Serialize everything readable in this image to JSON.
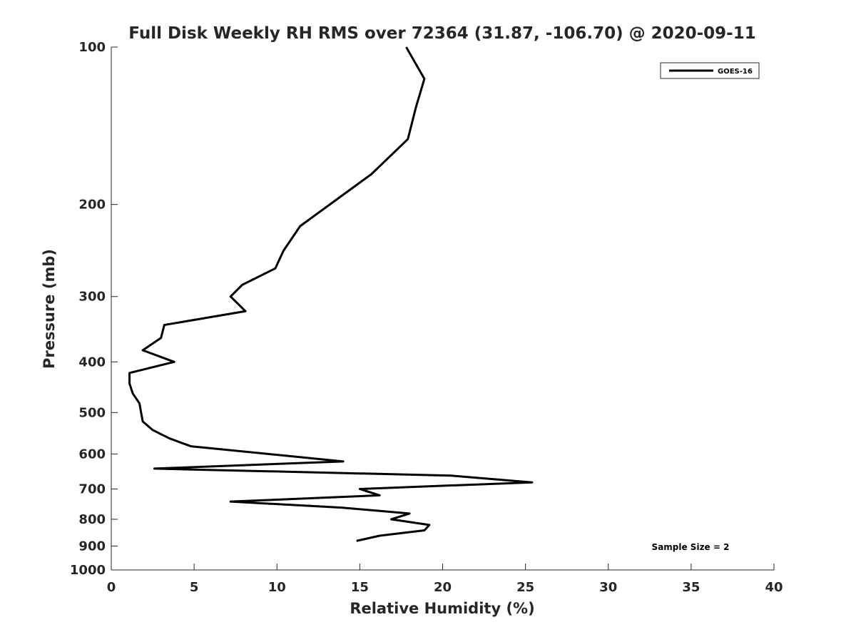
{
  "chart_data": {
    "type": "line",
    "title": "Full Disk Weekly RH RMS over 72364 (31.87, -106.70) @ 2020-09-11",
    "xlabel": "Relative Humidity (%)",
    "ylabel": "Pressure (mb)",
    "xlim": [
      0,
      40
    ],
    "ylim": [
      100,
      1000
    ],
    "yscale": "log",
    "yaxis_reversed": true,
    "xticks": [
      0,
      5,
      10,
      15,
      20,
      25,
      30,
      35,
      40
    ],
    "yticks": [
      100,
      200,
      300,
      400,
      500,
      600,
      700,
      800,
      900,
      1000
    ],
    "grid": false,
    "legend": {
      "placement": "top-right",
      "entries": [
        "GOES-16"
      ]
    },
    "annotation": "Sample Size = 2",
    "line_color": "#000000",
    "series": [
      {
        "name": "GOES-16",
        "x": [
          17.8,
          18.9,
          18.4,
          17.9,
          15.7,
          11.4,
          10.4,
          9.9,
          7.9,
          7.2,
          8.1,
          3.2,
          3.0,
          1.9,
          3.8,
          1.1,
          1.1,
          1.3,
          1.7,
          1.8,
          1.9,
          2.5,
          3.5,
          4.8,
          14.0,
          2.6,
          20.5,
          25.4,
          15.0,
          16.2,
          7.2,
          13.9,
          18.0,
          16.9,
          19.2,
          18.9,
          16.2,
          14.8
        ],
        "y": [
          100,
          115,
          130,
          150,
          175,
          220,
          245,
          265,
          285,
          300,
          320,
          340,
          360,
          380,
          400,
          420,
          440,
          460,
          480,
          500,
          520,
          540,
          560,
          580,
          620,
          640,
          660,
          680,
          700,
          720,
          740,
          760,
          780,
          800,
          820,
          840,
          860,
          880
        ]
      }
    ]
  }
}
